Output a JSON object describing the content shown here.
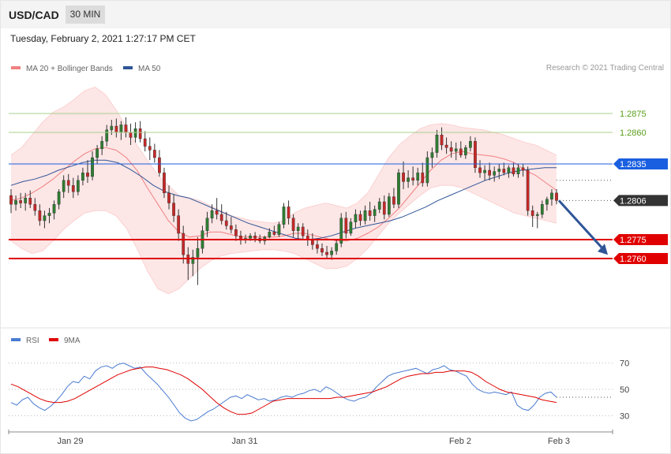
{
  "header": {
    "symbol": "USD/CAD",
    "timeframe": "30 MIN"
  },
  "timestamp": "Tuesday, February 2, 2021 1:27:17 PM CET",
  "credit": "Research © 2021 Trading Central",
  "colors": {
    "bollinger": "#f08080",
    "ma50": "#2f5597",
    "resistance": "#5a9e1a",
    "pivot": "#1a5fe0",
    "support": "#e00000",
    "last": "#333333",
    "rsi": "#4a7bd0",
    "rsi_ma": "#e00000",
    "candle_up": "#2e7d32",
    "candle_down": "#c62828"
  },
  "chart_data": [
    {
      "type": "candlestick",
      "title": "",
      "legend": [
        {
          "name": "MA 20 + Bollinger Bands",
          "color": "#f08080"
        },
        {
          "name": "MA 50",
          "color": "#2f5597"
        }
      ],
      "legend_position": "top-left",
      "x_ticks": [
        "Jan 29",
        "Jan 31",
        "Feb 2",
        "Feb 3"
      ],
      "ylim": [
        1.2715,
        1.2905
      ],
      "grid": false,
      "levels": [
        {
          "label": "1.2875",
          "value": 1.2875,
          "role": "resistance"
        },
        {
          "label": "1.2860",
          "value": 1.286,
          "role": "resistance"
        },
        {
          "label": "1.2835",
          "value": 1.2835,
          "role": "pivot"
        },
        {
          "label": "1.2806",
          "value": 1.2806,
          "role": "last"
        },
        {
          "label": "1.2775",
          "value": 1.2775,
          "role": "support"
        },
        {
          "label": "1.2760",
          "value": 1.276,
          "role": "support"
        }
      ],
      "forecast_arrow": {
        "from": 1.2806,
        "to": 1.2763
      },
      "ohlc": [
        [
          1.281,
          1.2815,
          1.2796,
          1.2803
        ],
        [
          1.2803,
          1.281,
          1.2798,
          1.2806
        ],
        [
          1.2806,
          1.2812,
          1.28,
          1.2804
        ],
        [
          1.2804,
          1.2812,
          1.2798,
          1.2808
        ],
        [
          1.2808,
          1.2814,
          1.28,
          1.2803
        ],
        [
          1.2803,
          1.2808,
          1.2794,
          1.2798
        ],
        [
          1.2798,
          1.2803,
          1.2786,
          1.279
        ],
        [
          1.279,
          1.2798,
          1.2784,
          1.2794
        ],
        [
          1.2794,
          1.28,
          1.2788,
          1.2796
        ],
        [
          1.2796,
          1.2806,
          1.2791,
          1.2803
        ],
        [
          1.2803,
          1.2815,
          1.2799,
          1.2813
        ],
        [
          1.2813,
          1.2826,
          1.2808,
          1.2822
        ],
        [
          1.2822,
          1.2827,
          1.2812,
          1.2818
        ],
        [
          1.2818,
          1.2824,
          1.2808,
          1.2813
        ],
        [
          1.2813,
          1.2826,
          1.281,
          1.2822
        ],
        [
          1.2822,
          1.2832,
          1.2818,
          1.2828
        ],
        [
          1.2828,
          1.2838,
          1.282,
          1.2825
        ],
        [
          1.2825,
          1.2845,
          1.2822,
          1.284
        ],
        [
          1.284,
          1.285,
          1.2835,
          1.2847
        ],
        [
          1.2847,
          1.2857,
          1.2842,
          1.2853
        ],
        [
          1.2853,
          1.2866,
          1.2849,
          1.2862
        ],
        [
          1.2862,
          1.287,
          1.2858,
          1.2865
        ],
        [
          1.2865,
          1.2871,
          1.2856,
          1.286
        ],
        [
          1.286,
          1.2869,
          1.2854,
          1.2866
        ],
        [
          1.2866,
          1.2872,
          1.2856,
          1.286
        ],
        [
          1.286,
          1.2867,
          1.285,
          1.2856
        ],
        [
          1.2856,
          1.2868,
          1.2852,
          1.2863
        ],
        [
          1.2863,
          1.2869,
          1.2852,
          1.2855
        ],
        [
          1.2855,
          1.2861,
          1.2845,
          1.2849
        ],
        [
          1.2849,
          1.2856,
          1.2838,
          1.2846
        ],
        [
          1.2846,
          1.2851,
          1.2836,
          1.284
        ],
        [
          1.284,
          1.2846,
          1.2825,
          1.2828
        ],
        [
          1.2828,
          1.2832,
          1.2808,
          1.2812
        ],
        [
          1.2812,
          1.2818,
          1.2799,
          1.2804
        ],
        [
          1.2804,
          1.2811,
          1.2789,
          1.2794
        ],
        [
          1.2794,
          1.2799,
          1.2774,
          1.278
        ],
        [
          1.278,
          1.2786,
          1.2756,
          1.2763
        ],
        [
          1.2763,
          1.2769,
          1.2743,
          1.2756
        ],
        [
          1.2756,
          1.2767,
          1.2746,
          1.2761
        ],
        [
          1.2761,
          1.2777,
          1.2739,
          1.2768
        ],
        [
          1.2768,
          1.2786,
          1.2764,
          1.2782
        ],
        [
          1.2782,
          1.2797,
          1.2777,
          1.2792
        ],
        [
          1.2792,
          1.2803,
          1.2788,
          1.2798
        ],
        [
          1.2798,
          1.2808,
          1.2791,
          1.2795
        ],
        [
          1.2795,
          1.2803,
          1.2787,
          1.279
        ],
        [
          1.279,
          1.2797,
          1.2783,
          1.2786
        ],
        [
          1.2786,
          1.2793,
          1.278,
          1.2783
        ],
        [
          1.2783,
          1.2787,
          1.2774,
          1.2778
        ],
        [
          1.2778,
          1.2782,
          1.2771,
          1.2775
        ],
        [
          1.2775,
          1.2779,
          1.2772,
          1.2776
        ],
        [
          1.2776,
          1.278,
          1.2774,
          1.2778
        ],
        [
          1.2778,
          1.2781,
          1.2773,
          1.2776
        ],
        [
          1.2776,
          1.2779,
          1.2772,
          1.2774
        ],
        [
          1.2774,
          1.2778,
          1.2771,
          1.2777
        ],
        [
          1.2777,
          1.2784,
          1.2776,
          1.2781
        ],
        [
          1.2781,
          1.2786,
          1.2778,
          1.2779
        ],
        [
          1.2779,
          1.2789,
          1.2777,
          1.2787
        ],
        [
          1.2787,
          1.2804,
          1.2784,
          1.2801
        ],
        [
          1.2801,
          1.2806,
          1.2787,
          1.2792
        ],
        [
          1.2792,
          1.2795,
          1.2777,
          1.2782
        ],
        [
          1.2782,
          1.2788,
          1.2775,
          1.2785
        ],
        [
          1.2785,
          1.2788,
          1.2775,
          1.2778
        ],
        [
          1.2778,
          1.2783,
          1.277,
          1.2775
        ],
        [
          1.2775,
          1.278,
          1.2767,
          1.2771
        ],
        [
          1.2771,
          1.2776,
          1.2764,
          1.2768
        ],
        [
          1.2768,
          1.2772,
          1.2762,
          1.2765
        ],
        [
          1.2765,
          1.277,
          1.276,
          1.2763
        ],
        [
          1.2763,
          1.2769,
          1.2759,
          1.2766
        ],
        [
          1.2766,
          1.2775,
          1.2763,
          1.2772
        ],
        [
          1.2772,
          1.2796,
          1.2769,
          1.2792
        ],
        [
          1.2792,
          1.2797,
          1.2776,
          1.278
        ],
        [
          1.278,
          1.2792,
          1.2778,
          1.2789
        ],
        [
          1.2789,
          1.2799,
          1.2784,
          1.2795
        ],
        [
          1.2795,
          1.2798,
          1.2786,
          1.279
        ],
        [
          1.279,
          1.2802,
          1.2787,
          1.2798
        ],
        [
          1.2798,
          1.2805,
          1.279,
          1.2794
        ],
        [
          1.2794,
          1.2802,
          1.2789,
          1.2799
        ],
        [
          1.2799,
          1.2808,
          1.2796,
          1.2805
        ],
        [
          1.2805,
          1.281,
          1.2791,
          1.2795
        ],
        [
          1.2795,
          1.2812,
          1.2793,
          1.2809
        ],
        [
          1.2809,
          1.2816,
          1.28,
          1.2803
        ],
        [
          1.2803,
          1.2831,
          1.28,
          1.2828
        ],
        [
          1.2828,
          1.2837,
          1.2815,
          1.2821
        ],
        [
          1.2821,
          1.283,
          1.2816,
          1.2824
        ],
        [
          1.2824,
          1.2833,
          1.2818,
          1.2822
        ],
        [
          1.2822,
          1.2832,
          1.2818,
          1.2828
        ],
        [
          1.2828,
          1.2836,
          1.2817,
          1.282
        ],
        [
          1.282,
          1.2845,
          1.2817,
          1.284
        ],
        [
          1.284,
          1.2848,
          1.2832,
          1.2844
        ],
        [
          1.2844,
          1.2862,
          1.284,
          1.2858
        ],
        [
          1.2858,
          1.2864,
          1.2846,
          1.285
        ],
        [
          1.285,
          1.2856,
          1.2843,
          1.2848
        ],
        [
          1.2848,
          1.2853,
          1.284,
          1.2845
        ],
        [
          1.2845,
          1.2852,
          1.2838,
          1.2847
        ],
        [
          1.2847,
          1.2853,
          1.284,
          1.2842
        ],
        [
          1.2842,
          1.285,
          1.2839,
          1.2848
        ],
        [
          1.2848,
          1.2857,
          1.2845,
          1.2853
        ],
        [
          1.2853,
          1.2856,
          1.2828,
          1.2832
        ],
        [
          1.2832,
          1.2838,
          1.2824,
          1.2828
        ],
        [
          1.2828,
          1.2834,
          1.2822,
          1.283
        ],
        [
          1.283,
          1.2836,
          1.2822,
          1.2826
        ],
        [
          1.2826,
          1.2833,
          1.2821,
          1.2829
        ],
        [
          1.2829,
          1.2835,
          1.2823,
          1.2831
        ],
        [
          1.2831,
          1.2836,
          1.2826,
          1.2828
        ],
        [
          1.2828,
          1.2834,
          1.2824,
          1.2832
        ],
        [
          1.2832,
          1.2836,
          1.2825,
          1.2827
        ],
        [
          1.2827,
          1.2835,
          1.2824,
          1.2832
        ],
        [
          1.2832,
          1.2835,
          1.2825,
          1.283
        ],
        [
          1.283,
          1.2833,
          1.2794,
          1.2798
        ],
        [
          1.2798,
          1.2802,
          1.2785,
          1.2794
        ],
        [
          1.2794,
          1.2797,
          1.2784,
          1.2795
        ],
        [
          1.2795,
          1.2806,
          1.2792,
          1.2803
        ],
        [
          1.2803,
          1.2809,
          1.2798,
          1.2807
        ],
        [
          1.2807,
          1.2815,
          1.2802,
          1.2812
        ],
        [
          1.2812,
          1.2815,
          1.2803,
          1.2806
        ]
      ],
      "ma20": [
        1.2806,
        1.2808,
        1.2812,
        1.2817,
        1.2823,
        1.283,
        1.2837,
        1.2843,
        1.2847,
        1.2848,
        1.2846,
        1.284,
        1.283,
        1.2816,
        1.2803,
        1.279,
        1.2781,
        1.2777,
        1.2778,
        1.2781,
        1.2781,
        1.2779,
        1.2777,
        1.2777,
        1.2777,
        1.2777,
        1.2778,
        1.278,
        1.278,
        1.2778,
        1.2776,
        1.2774,
        1.2774,
        1.2776,
        1.278,
        1.2785,
        1.2792,
        1.28,
        1.281,
        1.282,
        1.283,
        1.2838,
        1.2843,
        1.2845,
        1.2843,
        1.2842,
        1.2841,
        1.2839,
        1.2836,
        1.283,
        1.2826,
        1.282,
        1.2814
      ],
      "bb_upper": [
        1.2842,
        1.2848,
        1.2858,
        1.2868,
        1.2876,
        1.288,
        1.2886,
        1.2893,
        1.2896,
        1.289,
        1.2878,
        1.2864,
        1.285,
        1.2838,
        1.2826,
        1.2818,
        1.281,
        1.2808,
        1.2806,
        1.2802,
        1.2798,
        1.2794,
        1.2792,
        1.279,
        1.2789,
        1.2788,
        1.279,
        1.2796,
        1.28,
        1.2802,
        1.2804,
        1.2802,
        1.28,
        1.2804,
        1.2812,
        1.2826,
        1.284,
        1.285,
        1.2857,
        1.2863,
        1.2866,
        1.2867,
        1.2866,
        1.2864,
        1.2863,
        1.2862,
        1.286,
        1.2858,
        1.2855,
        1.2852,
        1.285,
        1.2846,
        1.2842
      ],
      "bb_lower": [
        1.2774,
        1.2768,
        1.2764,
        1.2766,
        1.2774,
        1.2783,
        1.279,
        1.2796,
        1.2798,
        1.2798,
        1.2794,
        1.2784,
        1.2768,
        1.275,
        1.2736,
        1.2732,
        1.2736,
        1.2744,
        1.2752,
        1.2758,
        1.2762,
        1.2764,
        1.2765,
        1.2766,
        1.2767,
        1.2767,
        1.2766,
        1.2764,
        1.276,
        1.2756,
        1.2752,
        1.2752,
        1.2754,
        1.276,
        1.2768,
        1.2778,
        1.2788,
        1.2796,
        1.2803,
        1.281,
        1.2816,
        1.2818,
        1.2818,
        1.2816,
        1.2812,
        1.2808,
        1.2804,
        1.28,
        1.2796,
        1.2794,
        1.2792,
        1.279,
        1.2788
      ],
      "ma50": [
        1.2818,
        1.2821,
        1.2823,
        1.2826,
        1.283,
        1.2833,
        1.2836,
        1.2838,
        1.2838,
        1.2836,
        1.2831,
        1.2825,
        1.2818,
        1.2813,
        1.281,
        1.2808,
        1.2804,
        1.28,
        1.2796,
        1.2792,
        1.2788,
        1.2785,
        1.2782,
        1.2779,
        1.2776,
        1.2775,
        1.2776,
        1.2778,
        1.2781,
        1.2784,
        1.2786,
        1.2788,
        1.279,
        1.2793,
        1.2797,
        1.2801,
        1.2806,
        1.281,
        1.2814,
        1.2818,
        1.2822,
        1.2825,
        1.2828,
        1.283,
        1.2831,
        1.2832,
        1.2832
      ],
      "last_price": 1.2806
    },
    {
      "type": "line",
      "title": "",
      "legend": [
        {
          "name": "RSI",
          "color": "#4a7bd0"
        },
        {
          "name": "9MA",
          "color": "#e00000"
        }
      ],
      "y_ticks": [
        "70",
        "50",
        "30"
      ],
      "ylim": [
        20,
        80
      ],
      "rsi": [
        40,
        38,
        42,
        44,
        39,
        36,
        34,
        37,
        41,
        46,
        52,
        56,
        55,
        60,
        58,
        64,
        67,
        68,
        66,
        69,
        70,
        68,
        66,
        67,
        62,
        58,
        54,
        49,
        44,
        38,
        32,
        28,
        26,
        27,
        30,
        33,
        35,
        38,
        41,
        44,
        45,
        43,
        46,
        44,
        42,
        43,
        41,
        42,
        44,
        45,
        44,
        46,
        47,
        49,
        50,
        48,
        52,
        50,
        47,
        44,
        42,
        41,
        43,
        44,
        47,
        52,
        56,
        60,
        62,
        63,
        64,
        65,
        66,
        64,
        62,
        65,
        66,
        68,
        65,
        64,
        62,
        60,
        54,
        50,
        48,
        47,
        48,
        47,
        46,
        48,
        38,
        35,
        34,
        38,
        44,
        47,
        48,
        44
      ],
      "rsi_ma": [
        54,
        52,
        49,
        46,
        43,
        41,
        40,
        40,
        41,
        43,
        46,
        49,
        52,
        55,
        58,
        61,
        63,
        65,
        66,
        67,
        67,
        66,
        65,
        63,
        61,
        58,
        54,
        50,
        45,
        40,
        36,
        33,
        31,
        31,
        32,
        35,
        38,
        41,
        42,
        43,
        43,
        43,
        43,
        43,
        43,
        43,
        44,
        44,
        45,
        46,
        47,
        48,
        50,
        52,
        55,
        58,
        60,
        61,
        62,
        62,
        63,
        63,
        64,
        64,
        64,
        63,
        60,
        56,
        53,
        50,
        48,
        47,
        46,
        45,
        44,
        42,
        41,
        40
      ]
    }
  ]
}
